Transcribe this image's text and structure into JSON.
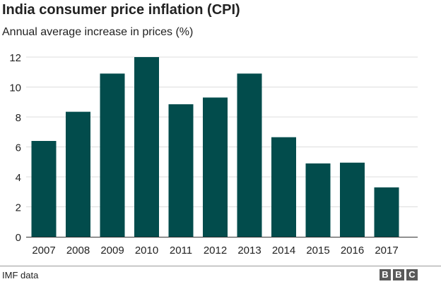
{
  "header": {
    "title": "India consumer price inflation (CPI)",
    "subtitle": "Annual average increase in prices (%)"
  },
  "footer": {
    "source": "IMF data",
    "logo_letters": [
      "B",
      "B",
      "C"
    ]
  },
  "colors": {
    "bar": "#024c4c",
    "grid": "#dddddd",
    "baseline": "#333333",
    "text": "#222222"
  },
  "chart_data": {
    "type": "bar",
    "title": "India consumer price inflation (CPI)",
    "subtitle": "Annual average increase in prices (%)",
    "xlabel": "",
    "ylabel": "",
    "categories": [
      "2007",
      "2008",
      "2009",
      "2010",
      "2011",
      "2012",
      "2013",
      "2014",
      "2015",
      "2016",
      "2017"
    ],
    "values": [
      6.4,
      8.35,
      10.9,
      12.0,
      8.85,
      9.3,
      10.9,
      6.65,
      4.9,
      4.95,
      3.3
    ],
    "ylim": [
      0,
      12
    ],
    "yticks": [
      0,
      2,
      4,
      6,
      8,
      10,
      12
    ],
    "grid": true,
    "legend": "none"
  }
}
